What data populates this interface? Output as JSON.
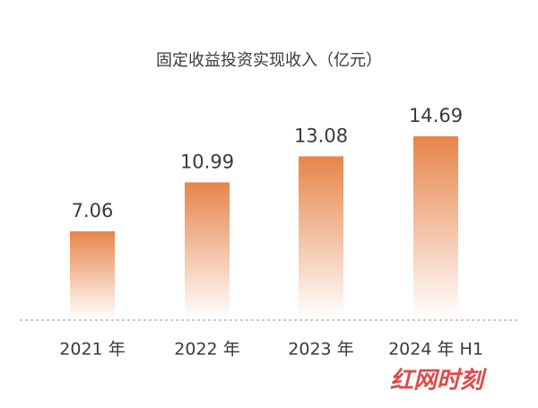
{
  "chart_data": {
    "type": "bar",
    "title": "固定收益投资实现收入（亿元）",
    "categories": [
      "2021 年",
      "2022 年",
      "2023 年",
      "2024 年 H1"
    ],
    "values": [
      7.06,
      10.99,
      13.08,
      14.69
    ],
    "color": "#e8844a"
  },
  "watermark": "红网时刻"
}
